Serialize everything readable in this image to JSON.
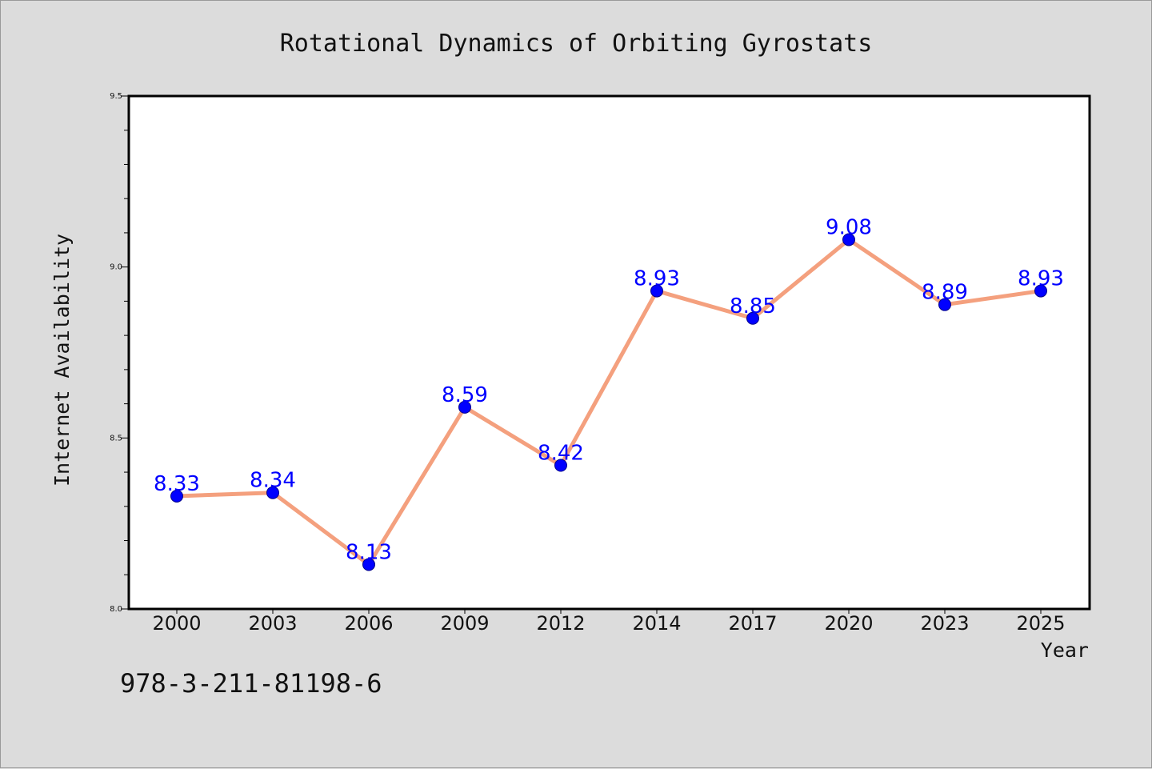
{
  "chart_data": {
    "type": "line",
    "title": "Rotational Dynamics of Orbiting Gyrostats",
    "xlabel": "Year",
    "ylabel": "Internet Availability",
    "categories": [
      "2000",
      "2003",
      "2006",
      "2009",
      "2012",
      "2014",
      "2017",
      "2020",
      "2023",
      "2025"
    ],
    "series": [
      {
        "values": [
          8.33,
          8.34,
          8.13,
          8.59,
          8.42,
          8.93,
          8.85,
          9.08,
          8.89,
          8.93
        ],
        "labels": [
          "8.33",
          "8.34",
          "8.13",
          "8.59",
          "8.42",
          "8.93",
          "8.85",
          "9.08",
          "8.89",
          "8.93"
        ]
      }
    ],
    "ylim": [
      8.0,
      9.5
    ],
    "yticks": [
      "8.0",
      "8.5",
      "9.0",
      "9.5"
    ],
    "ytick_values": [
      8.0,
      8.5,
      9.0,
      9.5
    ],
    "yminor_step": 0.1,
    "grid": false,
    "line_color": "#f4a07e",
    "marker_color": "#0000ff",
    "label_color": "#0000ff"
  },
  "footer": {
    "isbn": "978-3-211-81198-6"
  }
}
